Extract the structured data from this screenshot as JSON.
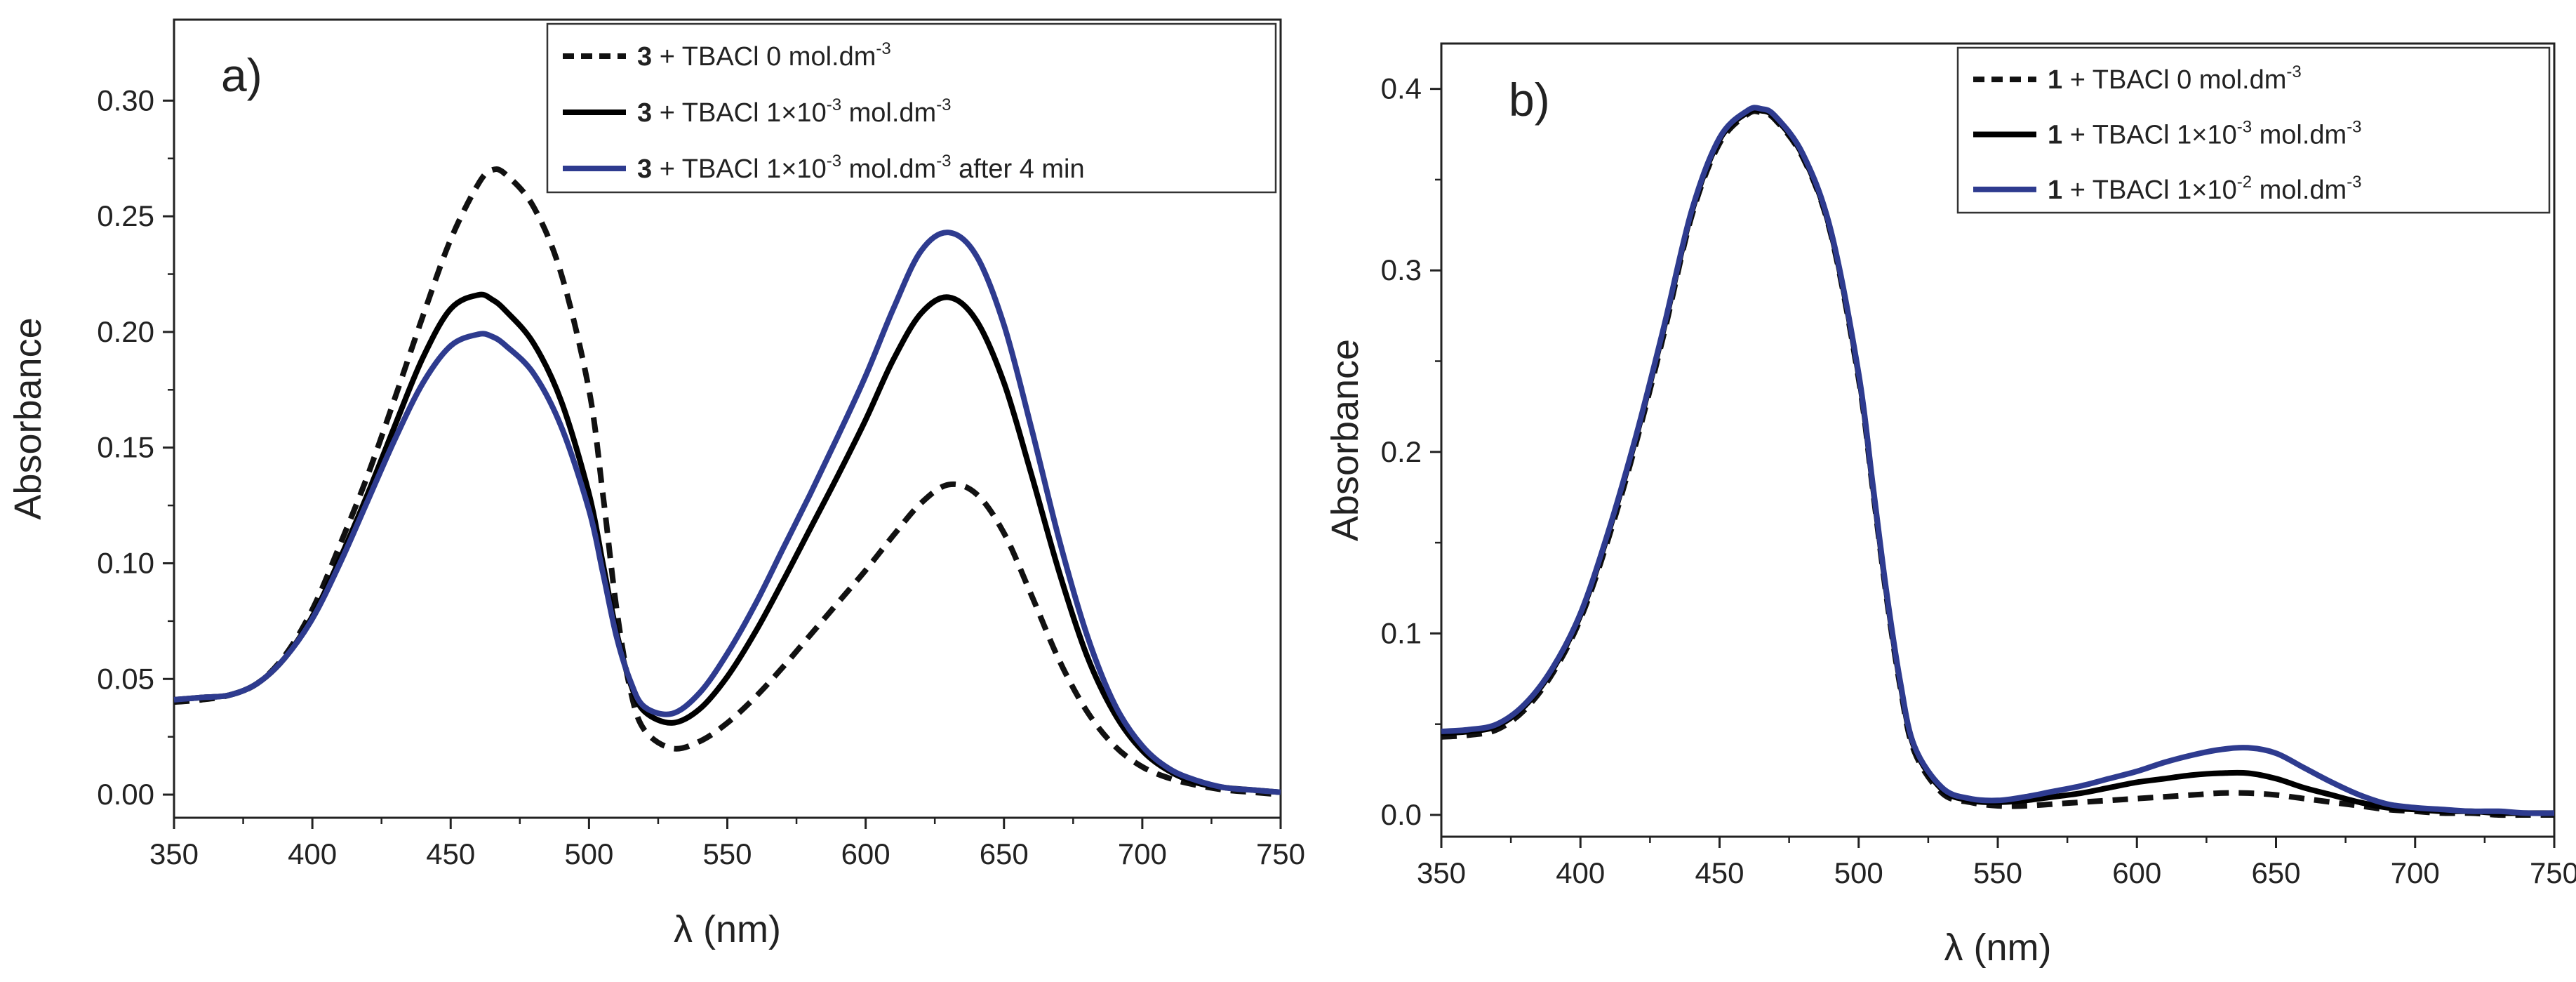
{
  "chart_data": [
    {
      "type": "line",
      "panel": "a)",
      "xlabel": "λ (nm)",
      "ylabel": "Absorbance",
      "xlim": [
        350,
        750
      ],
      "ylim": [
        -0.01,
        0.335
      ],
      "xticks": [
        350,
        400,
        450,
        500,
        550,
        600,
        650,
        700,
        750
      ],
      "yticks": [
        0.0,
        0.05,
        0.1,
        0.15,
        0.2,
        0.25,
        0.3
      ],
      "ytick_labels": [
        "0.00",
        "0.05",
        "0.10",
        "0.15",
        "0.20",
        "0.25",
        "0.30"
      ],
      "legend_position": "top-right",
      "series": [
        {
          "name": "3 + TBACl 0 mol.dm-3",
          "legend": {
            "bold": "3",
            "text": " + TBACl 0 mol.dm",
            "sup": "-3",
            "suffix": ""
          },
          "color": "#111111",
          "style": "dashed",
          "x": [
            350,
            360,
            370,
            380,
            390,
            400,
            410,
            420,
            430,
            440,
            450,
            460,
            465,
            470,
            480,
            490,
            500,
            505,
            510,
            515,
            520,
            530,
            540,
            550,
            560,
            570,
            580,
            590,
            600,
            610,
            620,
            630,
            640,
            650,
            660,
            670,
            680,
            690,
            700,
            710,
            720,
            730,
            740,
            750
          ],
          "y": [
            0.04,
            0.041,
            0.043,
            0.048,
            0.06,
            0.08,
            0.108,
            0.138,
            0.172,
            0.207,
            0.24,
            0.264,
            0.27,
            0.268,
            0.254,
            0.225,
            0.175,
            0.13,
            0.08,
            0.045,
            0.028,
            0.02,
            0.023,
            0.031,
            0.042,
            0.055,
            0.069,
            0.083,
            0.097,
            0.112,
            0.126,
            0.134,
            0.13,
            0.113,
            0.086,
            0.058,
            0.036,
            0.021,
            0.012,
            0.007,
            0.004,
            0.002,
            0.001,
            0.0
          ]
        },
        {
          "name": "3 + TBACl 1×10-3 mol.dm-3",
          "legend": {
            "bold": "3",
            "text": " + TBACl 1×10",
            "sup": "-3",
            "text2": " mol.dm",
            "sup2": "-3",
            "suffix": ""
          },
          "color": "#000000",
          "style": "solid",
          "x": [
            350,
            360,
            370,
            380,
            390,
            400,
            410,
            420,
            430,
            440,
            450,
            460,
            465,
            470,
            480,
            490,
            500,
            505,
            510,
            515,
            520,
            530,
            540,
            550,
            560,
            570,
            580,
            590,
            600,
            610,
            620,
            630,
            640,
            650,
            660,
            670,
            680,
            690,
            700,
            710,
            720,
            730,
            740,
            750
          ],
          "y": [
            0.041,
            0.042,
            0.043,
            0.048,
            0.059,
            0.077,
            0.102,
            0.13,
            0.16,
            0.189,
            0.21,
            0.216,
            0.214,
            0.209,
            0.195,
            0.17,
            0.13,
            0.1,
            0.07,
            0.048,
            0.036,
            0.031,
            0.037,
            0.051,
            0.07,
            0.092,
            0.115,
            0.138,
            0.162,
            0.188,
            0.208,
            0.215,
            0.205,
            0.178,
            0.138,
            0.096,
            0.06,
            0.035,
            0.019,
            0.01,
            0.005,
            0.003,
            0.002,
            0.001
          ]
        },
        {
          "name": "3 + TBACl 1×10-3 mol.dm-3 after 4 min",
          "legend": {
            "bold": "3",
            "text": " + TBACl 1×10",
            "sup": "-3",
            "text2": " mol.dm",
            "sup2": "-3",
            "suffix": " after 4 min"
          },
          "color": "#2e3b8f",
          "style": "solid",
          "x": [
            350,
            360,
            370,
            380,
            390,
            400,
            410,
            420,
            430,
            440,
            450,
            460,
            465,
            470,
            480,
            490,
            500,
            505,
            510,
            515,
            520,
            530,
            540,
            550,
            560,
            570,
            580,
            590,
            600,
            610,
            620,
            630,
            640,
            650,
            660,
            670,
            680,
            690,
            700,
            710,
            720,
            730,
            740,
            750
          ],
          "y": [
            0.041,
            0.042,
            0.043,
            0.048,
            0.059,
            0.076,
            0.1,
            0.127,
            0.154,
            0.178,
            0.194,
            0.199,
            0.198,
            0.194,
            0.182,
            0.159,
            0.123,
            0.096,
            0.068,
            0.049,
            0.038,
            0.035,
            0.044,
            0.061,
            0.082,
            0.106,
            0.13,
            0.155,
            0.181,
            0.21,
            0.235,
            0.243,
            0.233,
            0.203,
            0.158,
            0.11,
            0.069,
            0.039,
            0.021,
            0.011,
            0.006,
            0.003,
            0.002,
            0.001
          ]
        }
      ]
    },
    {
      "type": "line",
      "panel": "b)",
      "xlabel": "λ (nm)",
      "ylabel": "Absorbance",
      "xlim": [
        350,
        750
      ],
      "ylim": [
        -0.012,
        0.425
      ],
      "xticks": [
        350,
        400,
        450,
        500,
        550,
        600,
        650,
        700,
        750
      ],
      "yticks": [
        0.0,
        0.1,
        0.2,
        0.3,
        0.4
      ],
      "ytick_labels": [
        "0.0",
        "0.1",
        "0.2",
        "0.3",
        "0.4"
      ],
      "legend_position": "top-right",
      "series": [
        {
          "name": "1 + TBACl 0 mol.dm-3",
          "legend": {
            "bold": "1",
            "text": " + TBACl 0 mol.dm",
            "sup": "-3",
            "suffix": ""
          },
          "color": "#111111",
          "style": "dashed",
          "x": [
            350,
            360,
            370,
            380,
            390,
            400,
            410,
            420,
            430,
            440,
            450,
            460,
            465,
            470,
            480,
            490,
            500,
            505,
            510,
            515,
            520,
            530,
            540,
            550,
            560,
            570,
            580,
            590,
            600,
            610,
            620,
            630,
            640,
            650,
            660,
            670,
            680,
            690,
            700,
            710,
            720,
            730,
            740,
            750
          ],
          "y": [
            0.043,
            0.044,
            0.047,
            0.058,
            0.078,
            0.108,
            0.152,
            0.205,
            0.265,
            0.33,
            0.37,
            0.386,
            0.387,
            0.383,
            0.362,
            0.32,
            0.24,
            0.18,
            0.12,
            0.07,
            0.035,
            0.012,
            0.007,
            0.005,
            0.005,
            0.006,
            0.007,
            0.008,
            0.009,
            0.01,
            0.011,
            0.012,
            0.012,
            0.011,
            0.009,
            0.007,
            0.005,
            0.003,
            0.002,
            0.001,
            0.001,
            0.0,
            0.0,
            0.0
          ]
        },
        {
          "name": "1 + TBACl 1×10-3 mol.dm-3",
          "legend": {
            "bold": "1",
            "text": " + TBACl 1×10",
            "sup": "-3",
            "text2": " mol.dm",
            "sup2": "-3",
            "suffix": ""
          },
          "color": "#000000",
          "style": "solid",
          "x": [
            350,
            360,
            370,
            380,
            390,
            400,
            410,
            420,
            430,
            440,
            450,
            460,
            465,
            470,
            480,
            490,
            500,
            505,
            510,
            515,
            520,
            530,
            540,
            550,
            560,
            570,
            580,
            590,
            600,
            610,
            620,
            630,
            640,
            650,
            660,
            670,
            680,
            690,
            700,
            710,
            720,
            730,
            740,
            750
          ],
          "y": [
            0.045,
            0.046,
            0.049,
            0.06,
            0.08,
            0.11,
            0.155,
            0.208,
            0.268,
            0.332,
            0.372,
            0.387,
            0.388,
            0.384,
            0.363,
            0.321,
            0.242,
            0.182,
            0.122,
            0.072,
            0.037,
            0.014,
            0.008,
            0.007,
            0.008,
            0.01,
            0.012,
            0.015,
            0.018,
            0.02,
            0.022,
            0.023,
            0.023,
            0.02,
            0.015,
            0.011,
            0.007,
            0.004,
            0.003,
            0.002,
            0.002,
            0.001,
            0.001,
            0.001
          ]
        },
        {
          "name": "1 + TBACl 1×10-2 mol.dm-3",
          "legend": {
            "bold": "1",
            "text": " + TBACl 1×10",
            "sup": "-2",
            "text2": " mol.dm",
            "sup2": "-3",
            "suffix": ""
          },
          "color": "#2e3b8f",
          "style": "solid",
          "x": [
            350,
            360,
            370,
            380,
            390,
            400,
            410,
            420,
            430,
            440,
            450,
            460,
            465,
            470,
            480,
            490,
            500,
            505,
            510,
            515,
            520,
            530,
            540,
            550,
            560,
            570,
            580,
            590,
            600,
            610,
            620,
            630,
            640,
            650,
            660,
            670,
            680,
            690,
            700,
            710,
            720,
            730,
            740,
            750
          ],
          "y": [
            0.046,
            0.047,
            0.05,
            0.061,
            0.081,
            0.111,
            0.156,
            0.209,
            0.269,
            0.333,
            0.373,
            0.388,
            0.389,
            0.385,
            0.364,
            0.322,
            0.243,
            0.183,
            0.123,
            0.073,
            0.038,
            0.015,
            0.009,
            0.008,
            0.01,
            0.013,
            0.016,
            0.02,
            0.024,
            0.029,
            0.033,
            0.036,
            0.037,
            0.034,
            0.026,
            0.018,
            0.011,
            0.006,
            0.004,
            0.003,
            0.002,
            0.002,
            0.001,
            0.001
          ]
        }
      ]
    }
  ]
}
